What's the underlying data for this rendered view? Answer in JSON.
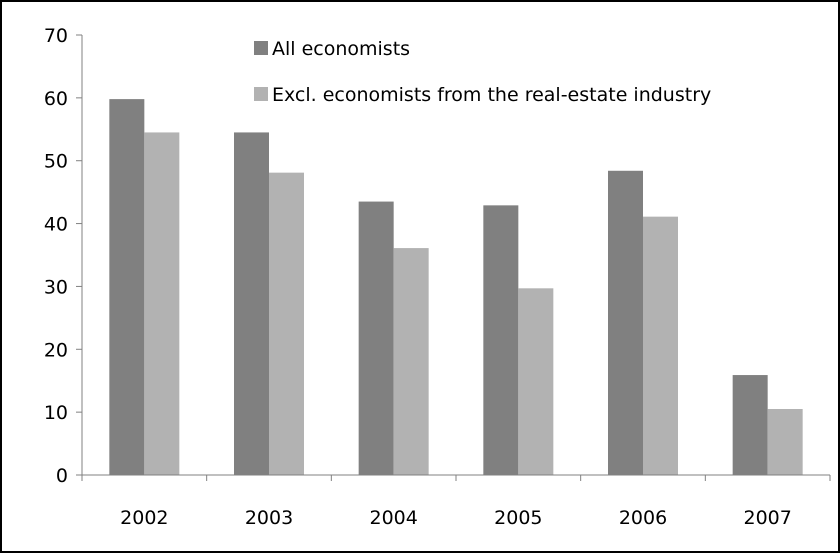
{
  "chart_data": {
    "type": "bar",
    "title": "",
    "xlabel": "",
    "ylabel": "",
    "categories": [
      "2002",
      "2003",
      "2004",
      "2005",
      "2006",
      "2007"
    ],
    "series": [
      {
        "name": "All economists",
        "color": "#808080",
        "values": [
          59.8,
          54.5,
          43.5,
          42.9,
          48.4,
          15.9
        ]
      },
      {
        "name": "Excl. economists from the real-estate industry",
        "color": "#b2b2b2",
        "values": [
          54.5,
          48.1,
          36.1,
          29.7,
          41.1,
          10.5
        ]
      }
    ],
    "ylim": [
      0,
      70
    ],
    "yticks": [
      0,
      10,
      20,
      30,
      40,
      50,
      60,
      70
    ],
    "grid": false,
    "legend_position": "top-right"
  }
}
